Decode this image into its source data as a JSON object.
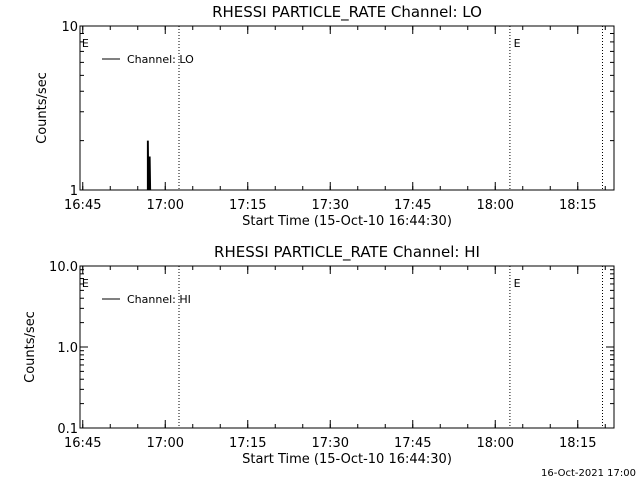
{
  "footer_timestamp": "16-Oct-2021 17:00",
  "chart_data": [
    {
      "type": "line",
      "title": "RHESSI PARTICLE_RATE Channel: LO",
      "xlabel": "Start Time (15-Oct-10 16:44:30)",
      "ylabel": "Counts/sec",
      "yscale": "log",
      "ylim": [
        1,
        10
      ],
      "ytick_labels": [
        "1",
        "10"
      ],
      "xtick_labels": [
        "16:45",
        "17:00",
        "17:15",
        "17:30",
        "17:45",
        "18:00",
        "18:15"
      ],
      "event_marker_label": "E",
      "legend": "top-left",
      "series": [
        {
          "name": "Channel: LO",
          "color": "#000000",
          "x": [
            "16:56:40",
            "16:56:45",
            "16:56:50",
            "16:56:55",
            "16:57:00",
            "16:57:05",
            "16:57:10",
            "16:57:15",
            "16:57:20"
          ],
          "y": [
            1,
            2,
            1,
            2,
            1,
            1.6,
            1,
            1.6,
            1
          ]
        }
      ]
    },
    {
      "type": "line",
      "title": "RHESSI PARTICLE_RATE Channel: HI",
      "xlabel": "Start Time (15-Oct-10 16:44:30)",
      "ylabel": "Counts/sec",
      "yscale": "log",
      "ylim": [
        0.1,
        10
      ],
      "ytick_labels": [
        "0.1",
        "1.0",
        "10.0"
      ],
      "xtick_labels": [
        "16:45",
        "17:00",
        "17:15",
        "17:30",
        "17:45",
        "18:00",
        "18:15"
      ],
      "event_marker_label": "E",
      "legend": "top-left",
      "series": [
        {
          "name": "Channel: HI",
          "color": "#000000",
          "x": [],
          "y": []
        }
      ]
    }
  ]
}
